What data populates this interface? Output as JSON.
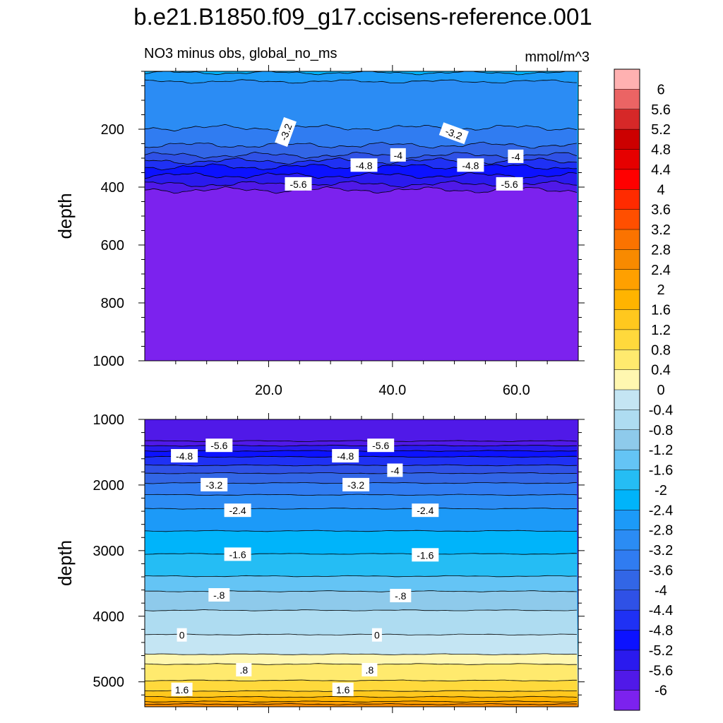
{
  "figure": {
    "title": "b.e21.B1850.f09_g17.ccisens-reference.001",
    "subtitle_left": "NO3 minus obs, global_no_ms",
    "subtitle_right": "mmol/m^3"
  },
  "chart_data": [
    {
      "type": "heatmap",
      "panel": "upper",
      "xlabel": "",
      "ylabel": "depth",
      "xlim": [
        0,
        70
      ],
      "ylim": [
        1000,
        0
      ],
      "x_ticks": [
        20,
        40,
        60
      ],
      "x_tick_labels": [
        "20.0",
        "40.0",
        "60.0"
      ],
      "y_ticks": [
        200,
        400,
        600,
        800,
        1000
      ],
      "y_tick_labels": [
        "200",
        "400",
        "600",
        "800",
        "1000"
      ],
      "contours": [
        {
          "level": -2.4,
          "depth": 5
        },
        {
          "level": -2.8,
          "depth": 35
        },
        {
          "level": -3.2,
          "depth": 195
        },
        {
          "level": -3.6,
          "depth": 255
        },
        {
          "level": -4.0,
          "depth": 290
        },
        {
          "level": -4.4,
          "depth": 310
        },
        {
          "level": -4.8,
          "depth": 330
        },
        {
          "level": -5.2,
          "depth": 360
        },
        {
          "level": -5.6,
          "depth": 390
        },
        {
          "level": -6.0,
          "depth": 410
        }
      ],
      "contour_labels": [
        {
          "text": "-3.2",
          "x": 22.8,
          "depth": 210,
          "angle": -70
        },
        {
          "text": "-3.2",
          "x": 49.9,
          "depth": 215,
          "angle": 20
        },
        {
          "text": "-4",
          "x": 40.9,
          "depth": 290,
          "angle": 0
        },
        {
          "text": "-4",
          "x": 59.9,
          "depth": 295,
          "angle": 0
        },
        {
          "text": "-4.8",
          "x": 35.4,
          "depth": 325,
          "angle": 0
        },
        {
          "text": "-4.8",
          "x": 52.6,
          "depth": 325,
          "angle": 0
        },
        {
          "text": "-5.6",
          "x": 24.8,
          "depth": 390,
          "angle": 0
        },
        {
          "text": "-5.6",
          "x": 58.9,
          "depth": 390,
          "angle": 0
        }
      ]
    },
    {
      "type": "heatmap",
      "panel": "lower",
      "xlabel": "",
      "ylabel": "depth",
      "xlim": [
        0,
        70
      ],
      "ylim": [
        5380,
        1000
      ],
      "x_ticks": [
        20,
        40,
        60
      ],
      "x_tick_labels": [
        "",
        "",
        ""
      ],
      "y_ticks": [
        1000,
        2000,
        3000,
        4000,
        5000
      ],
      "y_tick_labels": [
        "1000",
        "2000",
        "3000",
        "4000",
        "5000"
      ],
      "contours": [
        {
          "level": -6.0,
          "depth": 1330
        },
        {
          "level": -5.6,
          "depth": 1400
        },
        {
          "level": -5.2,
          "depth": 1480
        },
        {
          "level": -4.8,
          "depth": 1570
        },
        {
          "level": -4.4,
          "depth": 1700
        },
        {
          "level": -4.0,
          "depth": 1820
        },
        {
          "level": -3.6,
          "depth": 1970
        },
        {
          "level": -3.2,
          "depth": 2150
        },
        {
          "level": -2.8,
          "depth": 2360
        },
        {
          "level": -2.4,
          "depth": 2700
        },
        {
          "level": -2.0,
          "depth": 3050
        },
        {
          "level": -1.6,
          "depth": 3390
        },
        {
          "level": -1.2,
          "depth": 3620
        },
        {
          "level": -0.8,
          "depth": 3910
        },
        {
          "level": -0.4,
          "depth": 4280
        },
        {
          "level": 0.0,
          "depth": 4580
        },
        {
          "level": 0.4,
          "depth": 4730
        },
        {
          "level": 0.8,
          "depth": 4980
        },
        {
          "level": 1.2,
          "depth": 5140
        },
        {
          "level": 1.6,
          "depth": 5230
        },
        {
          "level": 2.0,
          "depth": 5300
        },
        {
          "level": 2.4,
          "depth": 5340
        }
      ],
      "contour_labels": [
        {
          "text": "-5.6",
          "x": 12.0,
          "depth": 1400
        },
        {
          "text": "-5.6",
          "x": 38.1,
          "depth": 1400
        },
        {
          "text": "-4.8",
          "x": 6.4,
          "depth": 1560
        },
        {
          "text": "-4.8",
          "x": 32.4,
          "depth": 1560
        },
        {
          "text": "-4",
          "x": 40.4,
          "depth": 1780
        },
        {
          "text": "-3.2",
          "x": 11.2,
          "depth": 2000
        },
        {
          "text": "-3.2",
          "x": 34.1,
          "depth": 2000
        },
        {
          "text": "-2.4",
          "x": 15.0,
          "depth": 2390
        },
        {
          "text": "-2.4",
          "x": 45.3,
          "depth": 2390
        },
        {
          "text": "-1.6",
          "x": 15.0,
          "depth": 3060
        },
        {
          "text": "-1.6",
          "x": 45.3,
          "depth": 3070
        },
        {
          "text": "-.8",
          "x": 12.0,
          "depth": 3680
        },
        {
          "text": "-.8",
          "x": 41.3,
          "depth": 3690
        },
        {
          "text": "0",
          "x": 6.0,
          "depth": 4290
        },
        {
          "text": "0",
          "x": 37.5,
          "depth": 4290
        },
        {
          "text": ".8",
          "x": 16.0,
          "depth": 4820
        },
        {
          "text": ".8",
          "x": 36.3,
          "depth": 4820
        },
        {
          "text": "1.6",
          "x": 6.0,
          "depth": 5120
        },
        {
          "text": "1.6",
          "x": 32.0,
          "depth": 5120
        }
      ]
    }
  ],
  "colorbar": {
    "labels": [
      "6",
      "5.6",
      "5.2",
      "4.8",
      "4.4",
      "4",
      "3.6",
      "3.2",
      "2.8",
      "2.4",
      "2",
      "1.6",
      "1.2",
      "0.8",
      "0.4",
      "0",
      "-0.4",
      "-0.8",
      "-1.2",
      "-1.6",
      "-2",
      "-2.4",
      "-2.8",
      "-3.2",
      "-3.6",
      "-4",
      "-4.4",
      "-4.8",
      "-5.2",
      "-5.6",
      "-6"
    ],
    "colors": [
      "#ffb1b1",
      "#eb6464",
      "#d62828",
      "#cc0000",
      "#e60000",
      "#ff0000",
      "#ff2b00",
      "#ff4f00",
      "#fb7300",
      "#f88a00",
      "#ffa000",
      "#ffb400",
      "#ffc81e",
      "#ffd93c",
      "#ffea6e",
      "#fff7b0",
      "#c4e5f3",
      "#aedcf1",
      "#8ecaeb",
      "#64c4f5",
      "#25bdf4",
      "#00b4fa",
      "#1c9af8",
      "#2b8cf4",
      "#307cf1",
      "#3266e6",
      "#2f51e6",
      "#1f31f4",
      "#0c12ff",
      "#2a1aee",
      "#5019e8",
      "#7c22ee"
    ]
  }
}
